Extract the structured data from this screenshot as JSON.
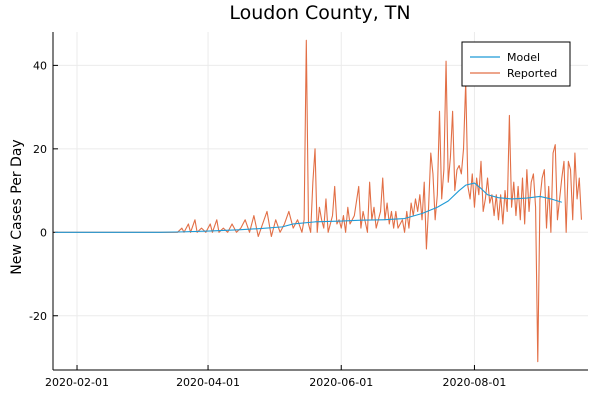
{
  "chart_data": {
    "type": "line",
    "title": "Loudon County, TN",
    "xlabel": "",
    "ylabel": "New Cases Per Day",
    "x_type": "date",
    "xlim": [
      "2020-01-21",
      "2020-09-22"
    ],
    "ylim": [
      -33,
      48
    ],
    "x_ticks": [
      "2020-02-01",
      "2020-04-01",
      "2020-06-01",
      "2020-08-01"
    ],
    "y_ticks": [
      -20,
      0,
      20,
      40
    ],
    "grid": true,
    "legend": {
      "position": "top-right"
    },
    "series": [
      {
        "name": "Model",
        "color": "#1f9ad6",
        "points": [
          [
            "2020-01-22",
            0
          ],
          [
            "2020-02-15",
            0
          ],
          [
            "2020-03-10",
            0
          ],
          [
            "2020-03-20",
            0.1
          ],
          [
            "2020-04-01",
            0.3
          ],
          [
            "2020-04-15",
            0.6
          ],
          [
            "2020-04-25",
            0.9
          ],
          [
            "2020-05-05",
            1.3
          ],
          [
            "2020-05-10",
            2.0
          ],
          [
            "2020-05-20",
            2.5
          ],
          [
            "2020-06-01",
            2.7
          ],
          [
            "2020-06-10",
            2.9
          ],
          [
            "2020-06-20",
            3.0
          ],
          [
            "2020-06-30",
            3.3
          ],
          [
            "2020-07-08",
            4.5
          ],
          [
            "2020-07-15",
            6.0
          ],
          [
            "2020-07-20",
            7.5
          ],
          [
            "2020-07-25",
            10.0
          ],
          [
            "2020-07-28",
            11.3
          ],
          [
            "2020-08-01",
            11.8
          ],
          [
            "2020-08-04",
            10.5
          ],
          [
            "2020-08-07",
            9.0
          ],
          [
            "2020-08-12",
            8.3
          ],
          [
            "2020-08-18",
            8.0
          ],
          [
            "2020-08-25",
            8.2
          ],
          [
            "2020-08-31",
            8.6
          ],
          [
            "2020-09-05",
            8.0
          ],
          [
            "2020-09-10",
            7.2
          ]
        ]
      },
      {
        "name": "Reported",
        "color": "#e26f46",
        "points": [
          [
            "2020-01-22",
            0
          ],
          [
            "2020-02-15",
            0
          ],
          [
            "2020-03-10",
            0
          ],
          [
            "2020-03-18",
            0
          ],
          [
            "2020-03-20",
            1
          ],
          [
            "2020-03-21",
            0
          ],
          [
            "2020-03-23",
            2
          ],
          [
            "2020-03-24",
            0
          ],
          [
            "2020-03-26",
            3
          ],
          [
            "2020-03-27",
            0
          ],
          [
            "2020-03-29",
            1
          ],
          [
            "2020-03-31",
            0
          ],
          [
            "2020-04-02",
            2
          ],
          [
            "2020-04-03",
            0
          ],
          [
            "2020-04-05",
            3
          ],
          [
            "2020-04-06",
            0
          ],
          [
            "2020-04-08",
            1
          ],
          [
            "2020-04-10",
            0
          ],
          [
            "2020-04-12",
            2
          ],
          [
            "2020-04-14",
            0
          ],
          [
            "2020-04-16",
            1
          ],
          [
            "2020-04-18",
            3
          ],
          [
            "2020-04-20",
            0
          ],
          [
            "2020-04-22",
            4
          ],
          [
            "2020-04-24",
            -1
          ],
          [
            "2020-04-26",
            2
          ],
          [
            "2020-04-28",
            5
          ],
          [
            "2020-04-30",
            -1
          ],
          [
            "2020-05-02",
            3
          ],
          [
            "2020-05-04",
            0
          ],
          [
            "2020-05-06",
            2
          ],
          [
            "2020-05-08",
            5
          ],
          [
            "2020-05-10",
            1
          ],
          [
            "2020-05-12",
            3
          ],
          [
            "2020-05-14",
            0
          ],
          [
            "2020-05-15",
            3
          ],
          [
            "2020-05-16",
            46
          ],
          [
            "2020-05-17",
            2
          ],
          [
            "2020-05-18",
            0
          ],
          [
            "2020-05-19",
            12
          ],
          [
            "2020-05-20",
            20
          ],
          [
            "2020-05-21",
            0
          ],
          [
            "2020-05-22",
            6
          ],
          [
            "2020-05-23",
            3
          ],
          [
            "2020-05-24",
            1
          ],
          [
            "2020-05-25",
            8
          ],
          [
            "2020-05-26",
            0
          ],
          [
            "2020-05-27",
            2
          ],
          [
            "2020-05-28",
            4
          ],
          [
            "2020-05-29",
            11
          ],
          [
            "2020-05-30",
            2
          ],
          [
            "2020-05-31",
            3
          ],
          [
            "2020-06-01",
            1
          ],
          [
            "2020-06-02",
            4
          ],
          [
            "2020-06-03",
            0
          ],
          [
            "2020-06-04",
            6
          ],
          [
            "2020-06-05",
            2
          ],
          [
            "2020-06-07",
            4
          ],
          [
            "2020-06-09",
            11
          ],
          [
            "2020-06-10",
            1
          ],
          [
            "2020-06-11",
            5
          ],
          [
            "2020-06-13",
            0
          ],
          [
            "2020-06-14",
            12
          ],
          [
            "2020-06-15",
            3
          ],
          [
            "2020-06-16",
            6
          ],
          [
            "2020-06-17",
            1
          ],
          [
            "2020-06-19",
            5
          ],
          [
            "2020-06-20",
            13
          ],
          [
            "2020-06-21",
            3
          ],
          [
            "2020-06-22",
            7
          ],
          [
            "2020-06-23",
            2
          ],
          [
            "2020-06-24",
            5
          ],
          [
            "2020-06-25",
            1
          ],
          [
            "2020-06-26",
            5
          ],
          [
            "2020-06-27",
            1
          ],
          [
            "2020-06-29",
            3
          ],
          [
            "2020-06-30",
            0
          ],
          [
            "2020-07-01",
            5
          ],
          [
            "2020-07-02",
            1
          ],
          [
            "2020-07-03",
            7
          ],
          [
            "2020-07-04",
            4
          ],
          [
            "2020-07-05",
            8
          ],
          [
            "2020-07-06",
            5
          ],
          [
            "2020-07-07",
            9
          ],
          [
            "2020-07-08",
            3
          ],
          [
            "2020-07-09",
            12
          ],
          [
            "2020-07-10",
            -4
          ],
          [
            "2020-07-11",
            6
          ],
          [
            "2020-07-12",
            19
          ],
          [
            "2020-07-13",
            14
          ],
          [
            "2020-07-14",
            3
          ],
          [
            "2020-07-15",
            9
          ],
          [
            "2020-07-16",
            29
          ],
          [
            "2020-07-17",
            8
          ],
          [
            "2020-07-18",
            15
          ],
          [
            "2020-07-19",
            41
          ],
          [
            "2020-07-20",
            12
          ],
          [
            "2020-07-21",
            18
          ],
          [
            "2020-07-22",
            29
          ],
          [
            "2020-07-23",
            10
          ],
          [
            "2020-07-24",
            15
          ],
          [
            "2020-07-25",
            16
          ],
          [
            "2020-07-26",
            14
          ],
          [
            "2020-07-27",
            20
          ],
          [
            "2020-07-28",
            36
          ],
          [
            "2020-07-29",
            11
          ],
          [
            "2020-07-30",
            8
          ],
          [
            "2020-07-31",
            14
          ],
          [
            "2020-08-01",
            6
          ],
          [
            "2020-08-02",
            13
          ],
          [
            "2020-08-03",
            9
          ],
          [
            "2020-08-04",
            17
          ],
          [
            "2020-08-05",
            5
          ],
          [
            "2020-08-06",
            8
          ],
          [
            "2020-08-07",
            13
          ],
          [
            "2020-08-08",
            7
          ],
          [
            "2020-08-09",
            9
          ],
          [
            "2020-08-10",
            4
          ],
          [
            "2020-08-11",
            9
          ],
          [
            "2020-08-12",
            3
          ],
          [
            "2020-08-13",
            9
          ],
          [
            "2020-08-14",
            2
          ],
          [
            "2020-08-15",
            10
          ],
          [
            "2020-08-16",
            5
          ],
          [
            "2020-08-17",
            28
          ],
          [
            "2020-08-18",
            6
          ],
          [
            "2020-08-19",
            12
          ],
          [
            "2020-08-20",
            4
          ],
          [
            "2020-08-21",
            11
          ],
          [
            "2020-08-22",
            3
          ],
          [
            "2020-08-23",
            13
          ],
          [
            "2020-08-24",
            2
          ],
          [
            "2020-08-25",
            15
          ],
          [
            "2020-08-26",
            5
          ],
          [
            "2020-08-27",
            12
          ],
          [
            "2020-08-28",
            14
          ],
          [
            "2020-08-29",
            6
          ],
          [
            "2020-08-30",
            -31
          ],
          [
            "2020-08-31",
            8
          ],
          [
            "2020-09-01",
            13
          ],
          [
            "2020-09-02",
            15
          ],
          [
            "2020-09-03",
            1
          ],
          [
            "2020-09-04",
            11
          ],
          [
            "2020-09-05",
            0
          ],
          [
            "2020-09-06",
            19
          ],
          [
            "2020-09-07",
            21
          ],
          [
            "2020-09-08",
            3
          ],
          [
            "2020-09-09",
            8
          ],
          [
            "2020-09-10",
            13
          ],
          [
            "2020-09-11",
            17
          ],
          [
            "2020-09-12",
            0
          ],
          [
            "2020-09-13",
            17
          ],
          [
            "2020-09-14",
            15
          ],
          [
            "2020-09-15",
            3
          ],
          [
            "2020-09-16",
            19
          ],
          [
            "2020-09-17",
            8
          ],
          [
            "2020-09-18",
            13
          ],
          [
            "2020-09-19",
            3
          ]
        ]
      }
    ]
  }
}
